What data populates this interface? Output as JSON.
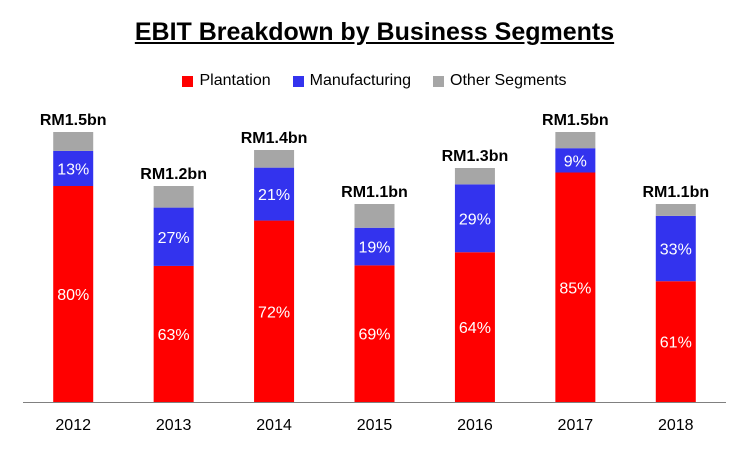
{
  "chart_data": {
    "type": "bar",
    "stacked": true,
    "title": "EBIT Breakdown by Business Segments",
    "xlabel": "",
    "ylabel": "",
    "categories": [
      "2012",
      "2013",
      "2014",
      "2015",
      "2016",
      "2017",
      "2018"
    ],
    "totals_bn": [
      1.5,
      1.2,
      1.4,
      1.1,
      1.3,
      1.5,
      1.1
    ],
    "total_labels": [
      "RM1.5bn",
      "RM1.2bn",
      "RM1.4bn",
      "RM1.1bn",
      "RM1.3bn",
      "RM1.5bn",
      "RM1.1bn"
    ],
    "ylim": [
      0,
      1.6
    ],
    "legend_position": "top",
    "series": [
      {
        "name": "Plantation",
        "color": "#ff0000",
        "percent": [
          80,
          63,
          72,
          69,
          64,
          85,
          61
        ],
        "labels": [
          "80%",
          "63%",
          "72%",
          "69%",
          "64%",
          "85%",
          "61%"
        ]
      },
      {
        "name": "Manufacturing",
        "color": "#3333ee",
        "percent": [
          13,
          27,
          21,
          19,
          29,
          9,
          33
        ],
        "labels": [
          "13%",
          "27%",
          "21%",
          "19%",
          "29%",
          "9%",
          "33%"
        ]
      },
      {
        "name": "Other Segments",
        "color": "#a6a6a6",
        "percent": [
          7,
          10,
          7,
          12,
          7,
          6,
          6
        ],
        "labels": [
          "",
          "",
          "",
          "",
          "",
          "",
          ""
        ]
      }
    ]
  }
}
